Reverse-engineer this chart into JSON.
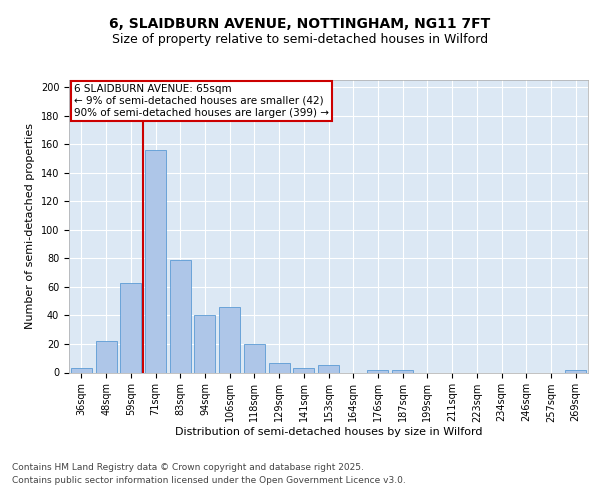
{
  "title": "6, SLAIDBURN AVENUE, NOTTINGHAM, NG11 7FT",
  "subtitle": "Size of property relative to semi-detached houses in Wilford",
  "xlabel": "Distribution of semi-detached houses by size in Wilford",
  "ylabel": "Number of semi-detached properties",
  "categories": [
    "36sqm",
    "48sqm",
    "59sqm",
    "71sqm",
    "83sqm",
    "94sqm",
    "106sqm",
    "118sqm",
    "129sqm",
    "141sqm",
    "153sqm",
    "164sqm",
    "176sqm",
    "187sqm",
    "199sqm",
    "211sqm",
    "223sqm",
    "234sqm",
    "246sqm",
    "257sqm",
    "269sqm"
  ],
  "values": [
    3,
    22,
    63,
    156,
    79,
    40,
    46,
    20,
    7,
    3,
    5,
    0,
    2,
    2,
    0,
    0,
    0,
    0,
    0,
    0,
    2
  ],
  "bar_color": "#aec6e8",
  "bar_edge_color": "#5b9bd5",
  "vline_color": "#cc0000",
  "annotation_title": "6 SLAIDBURN AVENUE: 65sqm",
  "annotation_line1": "← 9% of semi-detached houses are smaller (42)",
  "annotation_line2": "90% of semi-detached houses are larger (399) →",
  "annotation_box_edge_color": "#cc0000",
  "ylim": [
    0,
    205
  ],
  "yticks": [
    0,
    20,
    40,
    60,
    80,
    100,
    120,
    140,
    160,
    180,
    200
  ],
  "plot_bg_color": "#dce8f4",
  "grid_color": "#ffffff",
  "footnote1": "Contains HM Land Registry data © Crown copyright and database right 2025.",
  "footnote2": "Contains public sector information licensed under the Open Government Licence v3.0.",
  "title_fontsize": 10,
  "subtitle_fontsize": 9,
  "ylabel_fontsize": 8,
  "xlabel_fontsize": 8,
  "tick_fontsize": 7,
  "annotation_fontsize": 7.5,
  "footnote_fontsize": 6.5
}
